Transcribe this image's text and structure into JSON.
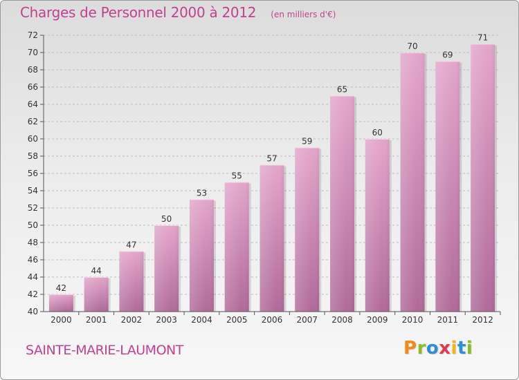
{
  "header": {
    "title": "Charges de Personnel 2000 à 2012",
    "subtitle": "(en milliers d'€)"
  },
  "footer": {
    "commune": "SAINTE-MARIE-LAUMONT",
    "brand": "Proxiti"
  },
  "colors": {
    "accent": "#c0418f",
    "bar_top": "#e3a6cb",
    "bar_bottom": "#b06a99",
    "axis_text": "#333333",
    "grid": "#bdbdbd",
    "logo_letters": [
      "#f08a1c",
      "#8dbb2b",
      "#2c8ed6",
      "#e23a4e",
      "#f2b51c",
      "#2c8ed6",
      "#8dbb2b"
    ]
  },
  "chart_data": {
    "type": "bar",
    "categories": [
      "2000",
      "2001",
      "2002",
      "2003",
      "2004",
      "2005",
      "2006",
      "2007",
      "2008",
      "2009",
      "2010",
      "2011",
      "2012"
    ],
    "values": [
      42,
      44,
      47,
      50,
      53,
      55,
      57,
      59,
      65,
      60,
      70,
      69,
      71
    ],
    "ylim": [
      40,
      72
    ],
    "yticks": [
      40,
      42,
      44,
      46,
      48,
      50,
      52,
      54,
      56,
      58,
      60,
      62,
      64,
      66,
      68,
      70,
      72
    ],
    "grid": true,
    "data_labels": true
  }
}
